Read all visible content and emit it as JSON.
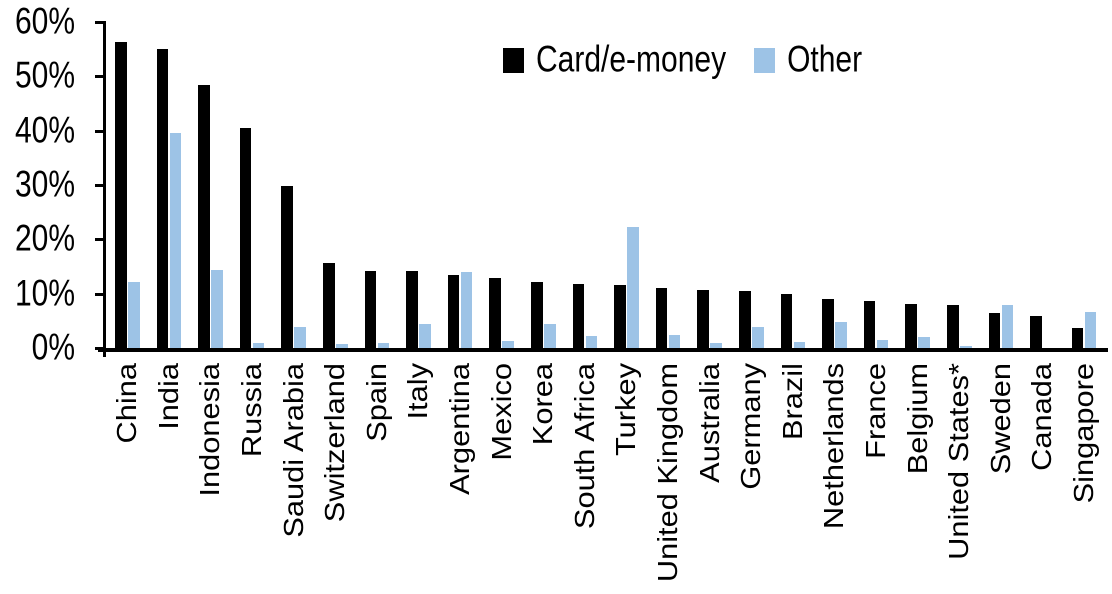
{
  "chart_data": {
    "type": "bar",
    "title": "",
    "xlabel": "",
    "ylabel": "",
    "ylim": [
      0,
      60
    ],
    "ytick_step": 10,
    "ytick_labels": [
      "60%",
      "50%",
      "40%",
      "30%",
      "20%",
      "10%",
      "0%"
    ],
    "y_unit": "%",
    "grid": false,
    "legend_position": "top-center",
    "categories": [
      "China",
      "India",
      "Indonesia",
      "Russia",
      "Saudi Arabia",
      "Switzerland",
      "Spain",
      "Italy",
      "Argentina",
      "Mexico",
      "Korea",
      "South Africa",
      "Turkey",
      "United Kingdom",
      "Australia",
      "Germany",
      "Brazil",
      "Netherlands",
      "France",
      "Belgium",
      "United States*",
      "Sweden",
      "Canada",
      "Singapore"
    ],
    "series": [
      {
        "name": "Card/e-money",
        "color": "#000000",
        "values": [
          56.3,
          55.0,
          48.4,
          40.4,
          29.8,
          15.6,
          14.2,
          14.1,
          13.4,
          12.9,
          12.2,
          11.7,
          11.6,
          11.1,
          10.7,
          10.5,
          9.9,
          9.1,
          8.6,
          8.1,
          7.9,
          6.5,
          5.9,
          3.7
        ]
      },
      {
        "name": "Other",
        "color": "#9DC3E6",
        "values": [
          12.2,
          39.6,
          14.4,
          1.0,
          3.9,
          0.8,
          0.9,
          4.5,
          13.9,
          1.3,
          4.5,
          2.3,
          22.3,
          2.4,
          1.0,
          3.8,
          1.1,
          4.7,
          1.5,
          2.0,
          0.3,
          8.0,
          0.0,
          6.7
        ]
      }
    ]
  }
}
